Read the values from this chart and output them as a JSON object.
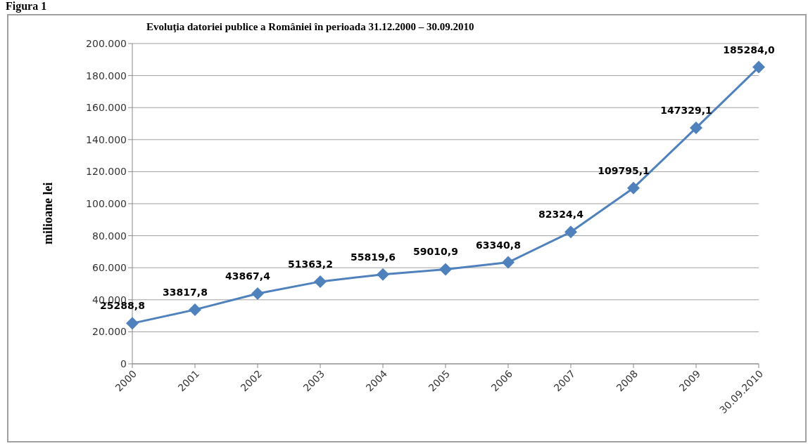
{
  "chart_data": {
    "type": "line",
    "title": "Evoluţia datoriei publice a României în perioada 31.12.2000 – 30.09.2010",
    "ylabel": "milioane lei",
    "annotations": [
      "Figura 1"
    ],
    "categories": [
      "2000",
      "2001",
      "2002",
      "2003",
      "2004",
      "2005",
      "2006",
      "2007",
      "2008",
      "2009",
      "30.09.2010"
    ],
    "series": [
      {
        "color": "#4f81bd",
        "values": [
          25288.8,
          33817.8,
          43867.4,
          51363.2,
          55819.6,
          59010.9,
          63340.8,
          82324.4,
          109795.1,
          147329.1,
          185284.0
        ],
        "value_labels": [
          "25288,8",
          "33817,8",
          "43867,4",
          "51363,2",
          "55819,6",
          "59010,9",
          "63340,8",
          "82324,4",
          "109795,1",
          "147329,1",
          "185284,0"
        ]
      }
    ],
    "ylim": [
      0,
      200000
    ],
    "yticks": [
      0,
      {
        "value": 20000,
        "label": "20.000"
      },
      {
        "value": 40000,
        "label": "40.000"
      },
      {
        "value": 60000,
        "label": "60.000"
      },
      {
        "value": 80000,
        "label": "80.000"
      },
      {
        "value": 100000,
        "label": "100.000"
      },
      {
        "value": 120000,
        "label": "120.000"
      },
      {
        "value": 140000,
        "label": "140.000"
      },
      {
        "value": 160000,
        "label": "160.000"
      },
      {
        "value": 180000,
        "label": "180.000"
      },
      {
        "value": 200000,
        "label": "200.000"
      }
    ],
    "grid": "y",
    "marker": "diamond",
    "line_style": "solid",
    "legend": false
  }
}
